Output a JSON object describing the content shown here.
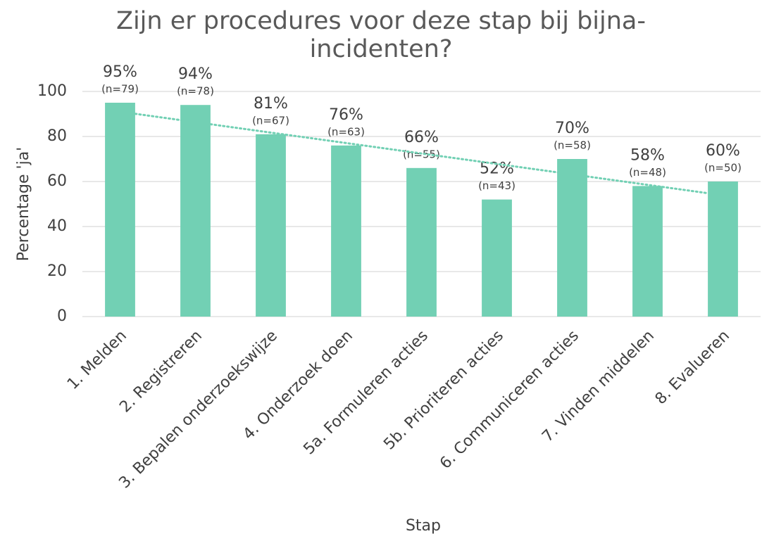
{
  "chart_data": {
    "type": "bar",
    "title": "Zijn er procedures voor deze stap bij bijna-incidenten?",
    "x_label": "Stap",
    "y_label": "Percentage 'ja'",
    "categories": [
      "1. Melden",
      "2. Registreren",
      "3. Bepalen onderzoekswijze",
      "4. Onderzoek doen",
      "5a. Formuleren acties",
      "5b. Prioriteren acties",
      "6. Communiceren acties",
      "7. Vinden middelen",
      "8. Evalueren"
    ],
    "values": [
      95,
      94,
      81,
      76,
      66,
      52,
      70,
      58,
      60
    ],
    "value_labels": [
      "95%",
      "94%",
      "81%",
      "76%",
      "66%",
      "52%",
      "70%",
      "58%",
      "60%"
    ],
    "annotations": [
      "(n=79)",
      "(n=78)",
      "(n=67)",
      "(n=63)",
      "(n=55)",
      "(n=43)",
      "(n=58)",
      "(n=48)",
      "(n=50)"
    ],
    "color": "#72d0b4",
    "trendline": true,
    "trendline_color": "#72d0b4",
    "ylim": [
      0,
      100
    ],
    "yticks": [
      0,
      20,
      40,
      60,
      80,
      100
    ],
    "grid": true
  }
}
